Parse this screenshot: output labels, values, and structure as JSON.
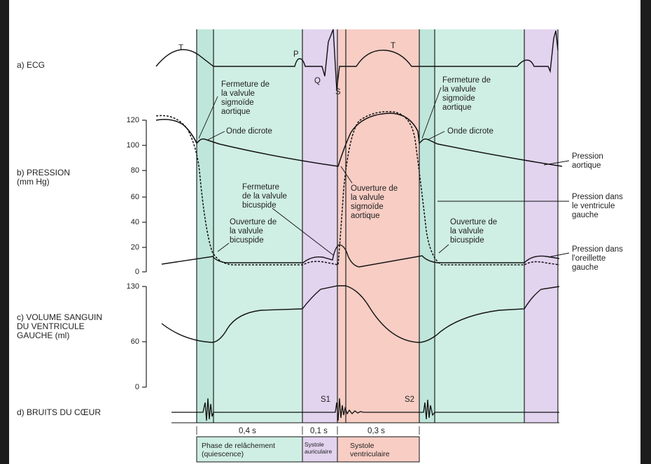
{
  "colors": {
    "relaxation": "#cfeee4",
    "relaxation_dark": "#bfe6da",
    "atrial_systole": "#e2d3ef",
    "ventricular_systole": "#f7cdc4",
    "curve": "#111111"
  },
  "sections": {
    "ecg": "a) ECG",
    "pressure": "b) PRESSION\n(mm Hg)",
    "volume": "c) VOLUME SANGUIN\nDU VENTRICULE\nGAUCHE (ml)",
    "sounds": "d) BRUITS DU CŒUR"
  },
  "ecg_waves": {
    "t1": "T",
    "p": "P",
    "q": "Q",
    "s": "S",
    "t2": "T"
  },
  "pressure_ticks": [
    "120",
    "100",
    "80",
    "60",
    "40",
    "20",
    "0"
  ],
  "volume_ticks": [
    "130",
    "60",
    "0"
  ],
  "annotations": {
    "fermeture_sigmoide_1": "Fermeture de\nla valvule\nsigmoïde\naortique",
    "onde_dicrote_1": "Onde dicrote",
    "fermeture_bicuspide": "Fermeture\nde la valvule\nbicuspide",
    "ouverture_bicuspide_1": "Ouverture de\nla valvule\nbicuspide",
    "ouverture_sigmoide": "Ouverture de\nla valvule\nsigmoïde\naortique",
    "fermeture_sigmoide_2": "Fermeture de\nla valvule\nsigmoïde\naortique",
    "onde_dicrote_2": "Onde dicrote",
    "ouverture_bicuspide_2": "Ouverture de\nla valvule\nbicuspide",
    "pression_aortique": "Pression\naortique",
    "pression_ventricule": "Pression dans\nle ventricule\ngauche",
    "pression_oreillette": "Pression dans\nl'oreillette\ngauche"
  },
  "heart_sounds": {
    "s1": "S1",
    "s2": "S2"
  },
  "durations": {
    "relaxation": "0,4 s",
    "atrial": "0,1 s",
    "ventricular": "0,3 s"
  },
  "legend": {
    "relaxation": "Phase de relâchement\n(quiescence)",
    "atrial": "Systole\nauriculaire",
    "ventricular": "Systole\nventriculaire"
  }
}
